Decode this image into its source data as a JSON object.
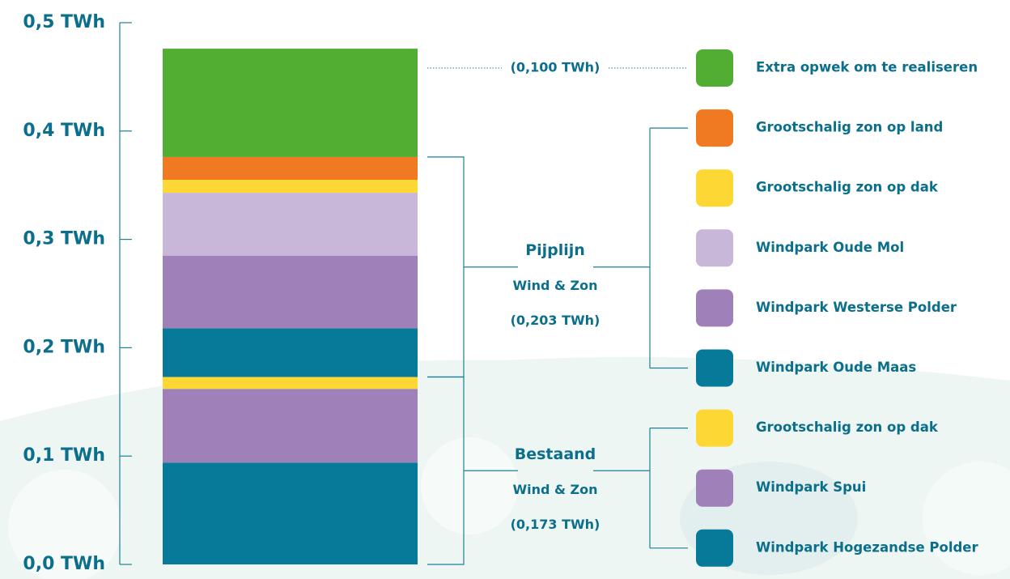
{
  "chart_data": {
    "type": "stacked-bar",
    "categories": [
      null
    ],
    "ylim": [
      0,
      0.5
    ],
    "yticks": [
      {
        "value": 0,
        "label": "0,0 TWh"
      },
      {
        "value": 0.1,
        "label": "0,1 TWh"
      },
      {
        "value": 0.2,
        "label": "0,2 TWh"
      },
      {
        "value": 0.3,
        "label": "0,3 TWh"
      },
      {
        "value": 0.4,
        "label": "0,4 TWh"
      },
      {
        "value": 0.5,
        "label": "0,5 TWh"
      }
    ],
    "series": [
      {
        "name": "Windpark Hogezandse Polder",
        "color": "#087a99",
        "values": [
          0.094
        ]
      },
      {
        "name": "Windpark Spui",
        "color": "#9f80b8",
        "values": [
          0.068
        ]
      },
      {
        "name": "Grootschalig zon op dak",
        "color": "#fdd835",
        "values": [
          0.011
        ]
      },
      {
        "name": "Windpark Oude Maas",
        "color": "#087a99",
        "values": [
          0.045
        ]
      },
      {
        "name": "Windpark Westerse Polder",
        "color": "#9f80b8",
        "values": [
          0.067
        ]
      },
      {
        "name": "Windpark Oude Mol",
        "color": "#c8b7d9",
        "values": [
          0.058
        ]
      },
      {
        "name": "Grootschalig zon op dak",
        "color": "#fdd835",
        "values": [
          0.012
        ]
      },
      {
        "name": "Grootschalig zon op land",
        "color": "#f07a22",
        "values": [
          0.021
        ]
      },
      {
        "name": "Extra opwek om te realiseren",
        "color": "#52ae32",
        "values": [
          0.1
        ],
        "value_labels": [
          "(0,100 TWh)"
        ]
      }
    ],
    "groups": [
      {
        "name": "Bestaand",
        "subtitle": "Wind & Zon",
        "total_label": "(0,173 TWh)"
      },
      {
        "name": "Pijplijn",
        "subtitle": "Wind & Zon",
        "total_label": "(0,203 TWh)"
      }
    ]
  }
}
